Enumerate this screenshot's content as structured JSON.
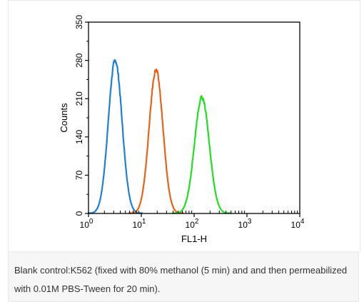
{
  "chart_data": {
    "type": "line",
    "title": "",
    "xlabel": "FL1-H",
    "ylabel": "Counts",
    "x_scale": "log",
    "xlim": [
      1,
      10000
    ],
    "ylim": [
      0,
      350
    ],
    "x_ticks": [
      {
        "value": 1,
        "base": "10",
        "exp": "0"
      },
      {
        "value": 10,
        "base": "10",
        "exp": "1"
      },
      {
        "value": 100,
        "base": "10",
        "exp": "2"
      },
      {
        "value": 1000,
        "base": "10",
        "exp": "3"
      },
      {
        "value": 10000,
        "base": "10",
        "exp": "4"
      }
    ],
    "y_ticks": [
      0,
      70,
      140,
      210,
      280,
      350
    ],
    "y_tick_labels": [
      "0",
      "70",
      "140",
      "210",
      "280",
      "350"
    ],
    "grid": false,
    "legend": "none",
    "series": [
      {
        "color": "#1e7fd6",
        "peak_x": 3.2,
        "peak_y": 280,
        "log_width": 0.13,
        "x": [
          2.0,
          2.5,
          3.2,
          4.0,
          5.0,
          6.3
        ],
        "y": [
          5,
          160,
          280,
          160,
          25,
          2
        ]
      },
      {
        "color": "#e8621a",
        "peak_x": 19,
        "peak_y": 262,
        "log_width": 0.13,
        "x": [
          11,
          15,
          19,
          25,
          32,
          40
        ],
        "y": [
          5,
          150,
          262,
          150,
          30,
          2
        ]
      },
      {
        "color": "#22dd22",
        "peak_x": 140,
        "peak_y": 212,
        "log_width": 0.14,
        "x": [
          70,
          100,
          140,
          190,
          260,
          330
        ],
        "y": [
          5,
          110,
          212,
          115,
          20,
          2
        ]
      }
    ]
  },
  "caption": {
    "text": "Blank control:K562 (fixed with 80% methanol (5 min) and and then permeabilized with 0.01M PBS-Tween for 20 min)."
  }
}
